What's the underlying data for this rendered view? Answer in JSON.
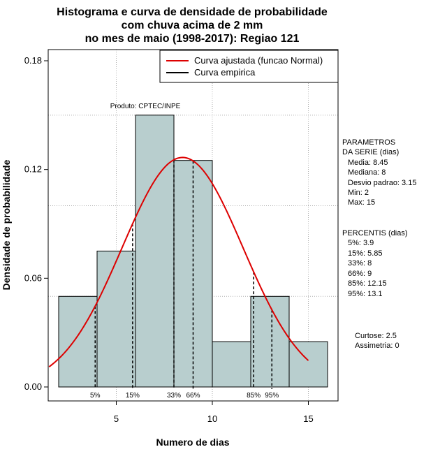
{
  "chart_data": {
    "type": "bar",
    "title_lines": [
      "Histograma e curva de densidade de probabilidade",
      "com chuva acima de 2 mm",
      "no mes de maio (1998-2017): Regiao 121"
    ],
    "xlabel": "Numero de dias",
    "ylabel": "Densidade de probabilidade",
    "xlim": [
      1.5,
      16.5
    ],
    "ylim": [
      0,
      0.18
    ],
    "x_ticks": [
      5,
      10,
      15
    ],
    "y_ticks": [
      0.0,
      0.06,
      0.12,
      0.18
    ],
    "y_tick_labels": [
      "0.00",
      "0.06",
      "0.12",
      "0.18"
    ],
    "grid_y": [
      0.05,
      0.1,
      0.15
    ],
    "grid_x": [
      5,
      10,
      15
    ],
    "bins": [
      {
        "from": 2,
        "to": 4,
        "density": 0.05
      },
      {
        "from": 4,
        "to": 6,
        "density": 0.075
      },
      {
        "from": 6,
        "to": 8,
        "density": 0.15
      },
      {
        "from": 8,
        "to": 10,
        "density": 0.125
      },
      {
        "from": 10,
        "to": 12,
        "density": 0.025
      },
      {
        "from": 12,
        "to": 14,
        "density": 0.05
      },
      {
        "from": 14,
        "to": 16,
        "density": 0.025
      }
    ],
    "bar_color": "#b8cece",
    "normal_curve": {
      "mean": 8.45,
      "sd": 3.15,
      "x_from": 1.5,
      "x_to": 15,
      "color": "#dd0000"
    },
    "percentile_lines": [
      {
        "label": "5%",
        "x": 3.9
      },
      {
        "label": "15%",
        "x": 5.85
      },
      {
        "label": "33%",
        "x": 8
      },
      {
        "label": "66%",
        "x": 9
      },
      {
        "label": "85%",
        "x": 12.15
      },
      {
        "label": "95%",
        "x": 13.1
      }
    ],
    "legend": [
      {
        "label": "Curva ajustada (funcao Normal)",
        "color": "#dd0000"
      },
      {
        "label": "Curva empirica",
        "color": "#000000"
      }
    ],
    "credit": "Produto: CPTEC/INPE"
  },
  "side_panel": {
    "params_title_1": "PARAMETROS",
    "params_title_2": "DA SERIE (dias)",
    "params": [
      "Media: 8.45",
      "Mediana: 8",
      "Desvio padrao: 3.15",
      "Min: 2",
      "Max: 15"
    ],
    "perc_title": "PERCENTIS (dias)",
    "percentiles": [
      "5%: 3.9",
      "15%: 5.85",
      "33%: 8",
      "66%: 9",
      "85%: 12.15",
      "95%: 13.1"
    ],
    "curtose": "Curtose: 2.5",
    "assimetria": "Assimetria: 0"
  }
}
